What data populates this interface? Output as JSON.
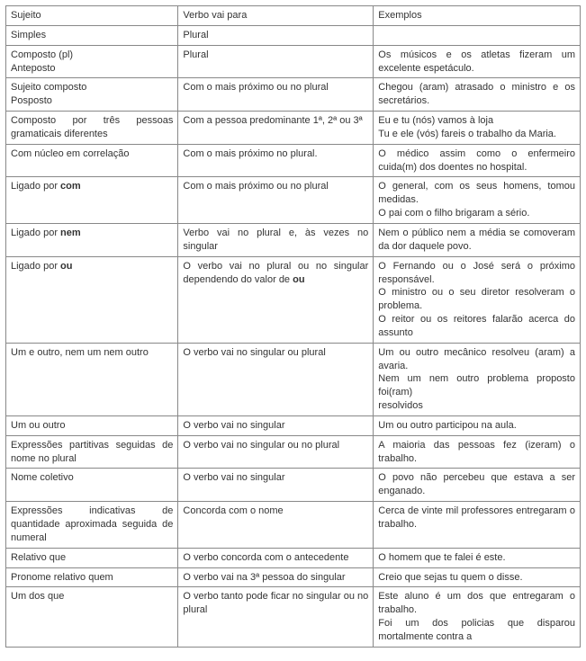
{
  "headers": {
    "c1": "Sujeito",
    "c2": "Verbo vai para",
    "c3": "Exemplos"
  },
  "rows": [
    {
      "c1": "Simples",
      "c2": "Plural",
      "c3": ""
    },
    {
      "c1": "Composto (pl)\nAnteposto",
      "c2": "Plural",
      "c3": "Os músicos e os atletas fizeram um excelente espetáculo."
    },
    {
      "c1": "Sujeito composto\nPosposto",
      "c2": "Com o mais próximo ou no plural",
      "c3": "Chegou (aram) atrasado o ministro e os secretários."
    },
    {
      "c1": "Composto por três pessoas gramaticais diferentes",
      "c2": "Com a pessoa predominante 1ª, 2ª ou 3ª",
      "c3": "Eu e tu (nós) vamos à loja\nTu e ele (vós) fareis o trabalho da Maria."
    },
    {
      "c1": "Com núcleo em correlação",
      "c2": "Com o mais próximo no plural.",
      "c3": "O médico assim como o enfermeiro cuida(m) dos doentes no hospital."
    },
    {
      "c1_pre": "Ligado por ",
      "c1_bold": "com",
      "c2": "Com o mais próximo ou no plural",
      "c3": "O general, com os seus homens, tomou medidas.\nO pai com o filho brigaram a sério."
    },
    {
      "c1_pre": "Ligado por ",
      "c1_bold": "nem",
      "c2": "Verbo vai no plural e, às vezes no singular",
      "c3": "Nem o público nem a média se comoveram da dor daquele povo."
    },
    {
      "c1_pre": "Ligado por ",
      "c1_bold": "ou",
      "c2_pre": "O verbo vai no plural ou no singular dependendo do valor de ",
      "c2_bold": "ou",
      "c3": "O Fernando ou o José será o próximo responsável.\nO ministro ou o seu diretor resolveram o problema.\nO reitor ou os reitores falarão acerca do assunto"
    },
    {
      "c1": "Um e outro, nem um nem outro",
      "c2": "O verbo vai no singular ou plural",
      "c3": "Um ou outro mecânico resolveu (aram) a avaria.\nNem um nem outro problema proposto foi(ram)\nresolvidos"
    },
    {
      "c1": "Um ou outro",
      "c2": "O verbo vai no singular",
      "c3": "Um ou outro participou na aula."
    },
    {
      "c1": "Expressões partitivas seguidas de nome no plural",
      "c2": "O verbo vai no singular ou no plural",
      "c3": "A maioria das pessoas fez (izeram) o trabalho."
    },
    {
      "c1": "Nome coletivo",
      "c2": "O verbo vai no singular",
      "c3": "O povo não percebeu que estava a ser enganado."
    },
    {
      "c1": "Expressões indicativas de quantidade aproximada seguida de numeral",
      "c2": "Concorda com o nome",
      "c3": "Cerca de vinte mil professores entregaram o trabalho."
    },
    {
      "c1": "Relativo que",
      "c2": "O verbo concorda com o antecedente",
      "c3": "O homem que te falei é este."
    },
    {
      "c1": "Pronome relativo quem",
      "c2": "O verbo vai na 3ª pessoa do singular",
      "c3": "Creio que sejas tu quem o disse."
    },
    {
      "c1": "Um dos que",
      "c2": "O verbo tanto pode ficar no singular ou no plural",
      "c3": "Este aluno é um dos que entregaram o trabalho.\nFoi um dos policias que disparou mortalmente contra a"
    }
  ]
}
